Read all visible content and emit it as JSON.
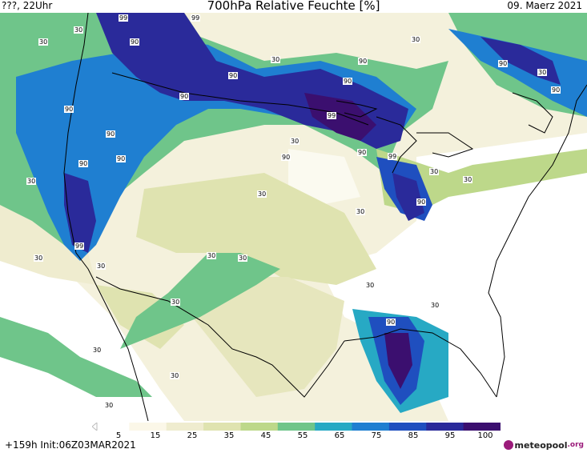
{
  "header": {
    "left": "???, 22Uhr",
    "title": "700hPa Relative Feuchte [%]",
    "date": "09. Maerz 2021"
  },
  "footer": {
    "run_info": "+159h Init:06Z03MAR2021",
    "brand": "meteopool",
    "brand_tld": ".org"
  },
  "legend": {
    "ticks": [
      "5",
      "15",
      "25",
      "35",
      "45",
      "55",
      "65",
      "75",
      "85",
      "95",
      "100"
    ],
    "colors": [
      "#ffffff",
      "#fbf7e8",
      "#efeccf",
      "#dfe3b0",
      "#bdd88a",
      "#6fc58a",
      "#27a9c4",
      "#1f7fd1",
      "#1f4fbf",
      "#2a2a9a",
      "#3b0f6f"
    ]
  },
  "contour_labels": [
    "30",
    "99",
    "90",
    "30",
    "90",
    "90",
    "99",
    "90",
    "90",
    "90",
    "90",
    "99",
    "90",
    "99",
    "90",
    "90",
    "90",
    "90",
    "30",
    "90",
    "90",
    "30",
    "30",
    "30",
    "30",
    "30",
    "30",
    "30",
    "30",
    "30",
    "30",
    "30",
    "30",
    "30",
    "30",
    "30",
    "99",
    "90",
    "30",
    "30",
    "30"
  ]
}
